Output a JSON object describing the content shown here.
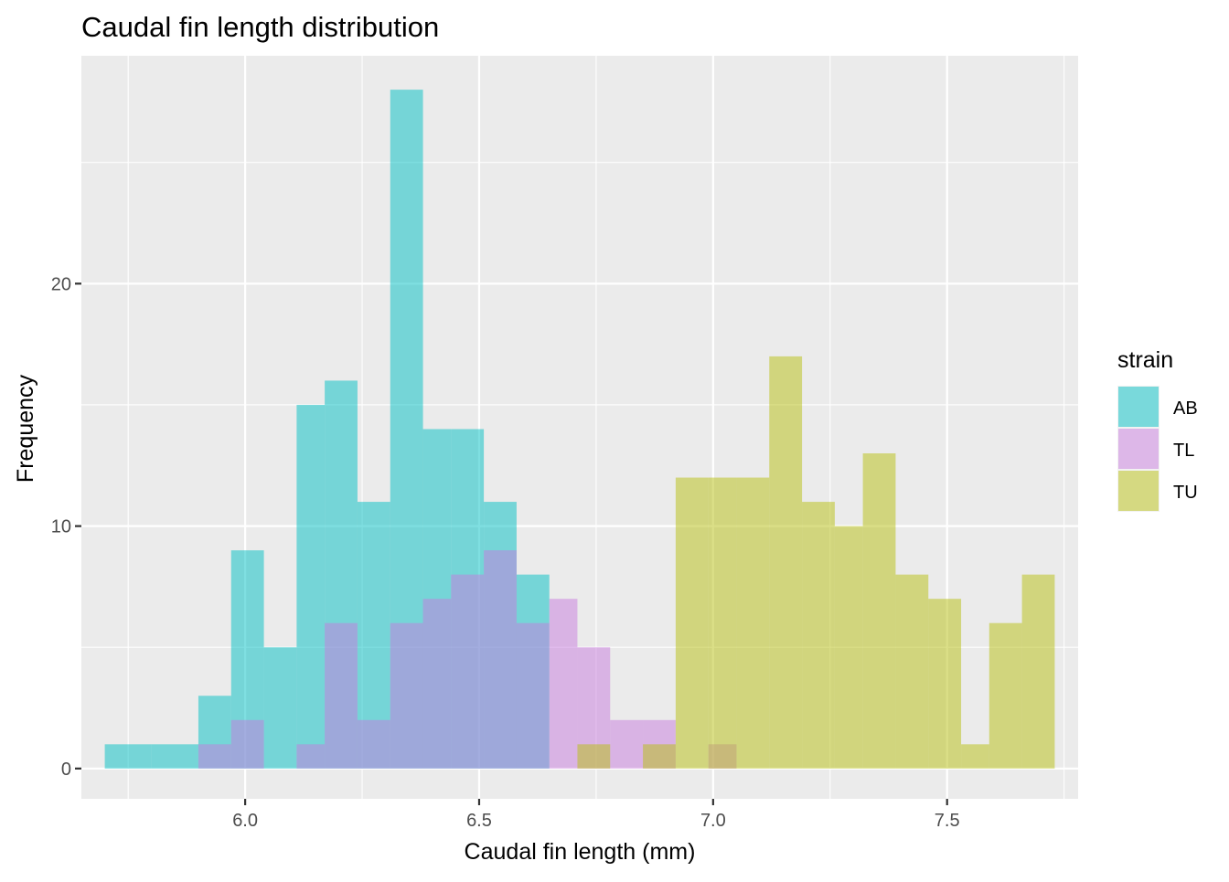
{
  "chart_data": {
    "type": "bar",
    "subtype": "overlapping-histogram",
    "title": "Caudal fin length distribution",
    "xlabel": "Caudal fin length (mm)",
    "ylabel": "Frequency",
    "xlim": [
      5.65,
      7.78
    ],
    "ylim": [
      -1.25,
      29.4
    ],
    "x_ticks": [
      6.0,
      6.5,
      7.0,
      7.5
    ],
    "x_tick_labels": [
      "6.0",
      "6.5",
      "7.0",
      "7.5"
    ],
    "y_ticks": [
      0,
      10,
      20
    ],
    "y_tick_labels": [
      "0",
      "10",
      "20"
    ],
    "grid": true,
    "legend": {
      "title": "strain",
      "position": "right"
    },
    "bin_width": 0.0675,
    "series": [
      {
        "name": "AB",
        "color": "#00BFC4",
        "bins": [
          {
            "x0": 5.7,
            "x1": 5.8,
            "count": 1
          },
          {
            "x0": 5.8,
            "x1": 5.9,
            "count": 1
          },
          {
            "x0": 5.9,
            "x1": 5.97,
            "count": 3
          },
          {
            "x0": 5.97,
            "x1": 6.04,
            "count": 9
          },
          {
            "x0": 6.04,
            "x1": 6.11,
            "count": 5
          },
          {
            "x0": 6.11,
            "x1": 6.17,
            "count": 15
          },
          {
            "x0": 6.17,
            "x1": 6.24,
            "count": 16
          },
          {
            "x0": 6.24,
            "x1": 6.31,
            "count": 11
          },
          {
            "x0": 6.31,
            "x1": 6.38,
            "count": 28
          },
          {
            "x0": 6.38,
            "x1": 6.44,
            "count": 14
          },
          {
            "x0": 6.44,
            "x1": 6.51,
            "count": 14
          },
          {
            "x0": 6.51,
            "x1": 6.58,
            "count": 11
          },
          {
            "x0": 6.58,
            "x1": 6.65,
            "count": 8
          }
        ]
      },
      {
        "name": "TL",
        "color": "#C77CDE",
        "bins": [
          {
            "x0": 5.9,
            "x1": 5.97,
            "count": 1
          },
          {
            "x0": 5.97,
            "x1": 6.04,
            "count": 2
          },
          {
            "x0": 6.11,
            "x1": 6.17,
            "count": 1
          },
          {
            "x0": 6.17,
            "x1": 6.24,
            "count": 6
          },
          {
            "x0": 6.24,
            "x1": 6.31,
            "count": 2
          },
          {
            "x0": 6.31,
            "x1": 6.38,
            "count": 6
          },
          {
            "x0": 6.38,
            "x1": 6.44,
            "count": 7
          },
          {
            "x0": 6.44,
            "x1": 6.51,
            "count": 8
          },
          {
            "x0": 6.51,
            "x1": 6.58,
            "count": 9
          },
          {
            "x0": 6.58,
            "x1": 6.65,
            "count": 6
          },
          {
            "x0": 6.65,
            "x1": 6.71,
            "count": 7
          },
          {
            "x0": 6.71,
            "x1": 6.78,
            "count": 5
          },
          {
            "x0": 6.78,
            "x1": 6.85,
            "count": 2
          },
          {
            "x0": 6.85,
            "x1": 6.92,
            "count": 2
          },
          {
            "x0": 6.99,
            "x1": 7.05,
            "count": 1
          }
        ]
      },
      {
        "name": "TU",
        "color": "#B7BF10",
        "bins": [
          {
            "x0": 6.71,
            "x1": 6.78,
            "count": 1
          },
          {
            "x0": 6.85,
            "x1": 6.92,
            "count": 1
          },
          {
            "x0": 6.92,
            "x1": 6.99,
            "count": 12
          },
          {
            "x0": 6.99,
            "x1": 7.05,
            "count": 12
          },
          {
            "x0": 7.05,
            "x1": 7.12,
            "count": 12
          },
          {
            "x0": 7.12,
            "x1": 7.19,
            "count": 17
          },
          {
            "x0": 7.19,
            "x1": 7.26,
            "count": 11
          },
          {
            "x0": 7.26,
            "x1": 7.32,
            "count": 10
          },
          {
            "x0": 7.32,
            "x1": 7.39,
            "count": 13
          },
          {
            "x0": 7.39,
            "x1": 7.46,
            "count": 8
          },
          {
            "x0": 7.46,
            "x1": 7.53,
            "count": 7
          },
          {
            "x0": 7.53,
            "x1": 7.59,
            "count": 1
          },
          {
            "x0": 7.59,
            "x1": 7.66,
            "count": 6
          },
          {
            "x0": 7.66,
            "x1": 7.73,
            "count": 8
          }
        ]
      }
    ]
  }
}
